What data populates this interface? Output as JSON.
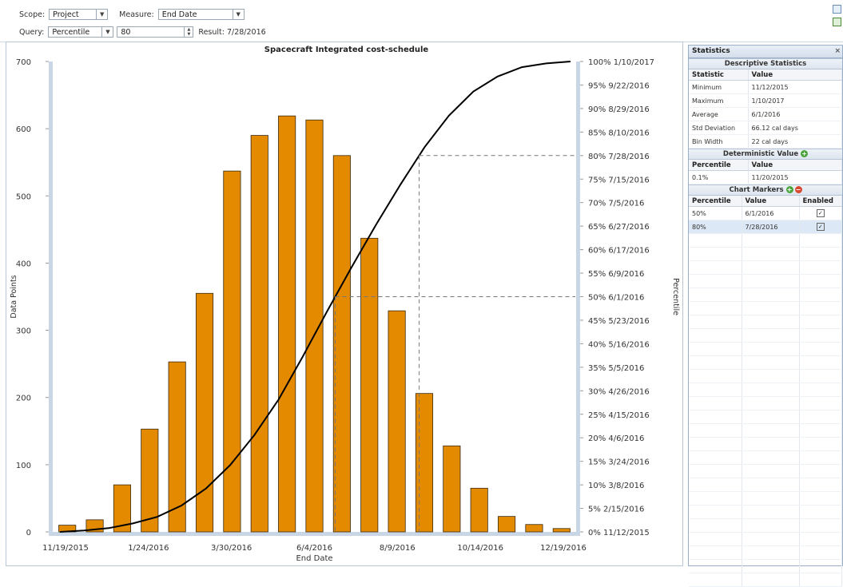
{
  "toolbar": {
    "scope_label": "Scope:",
    "scope_value": "Project",
    "measure_label": "Measure:",
    "measure_value": "End Date",
    "query_label": "Query:",
    "query_value": "Percentile",
    "query_input": "80",
    "result_text": "Result: 7/28/2016"
  },
  "chart_data": {
    "type": "bar",
    "title": "Spacecraft Integrated cost-schedule",
    "xlabel": "End Date",
    "ylabel": "Data Points",
    "y2label": "Percentile",
    "ylim": [
      0,
      700
    ],
    "yticks": [
      0,
      100,
      200,
      300,
      400,
      500,
      600,
      700
    ],
    "x_tick_labels": [
      "11/19/2015",
      "1/24/2016",
      "3/30/2016",
      "6/4/2016",
      "8/9/2016",
      "10/14/2016",
      "12/19/2016"
    ],
    "bar_color": "#e38a00",
    "values": [
      10,
      18,
      70,
      153,
      253,
      355,
      537,
      590,
      619,
      613,
      560,
      437,
      329,
      206,
      128,
      65,
      23,
      11,
      5
    ],
    "grid": false,
    "percentile_labels": [
      "0% 11/12/2015",
      "5% 2/15/2016",
      "10% 3/8/2016",
      "15% 3/24/2016",
      "20% 4/6/2016",
      "25% 4/15/2016",
      "30% 4/26/2016",
      "35% 5/5/2016",
      "40% 5/16/2016",
      "45% 5/23/2016",
      "50% 6/1/2016",
      "55% 6/9/2016",
      "60% 6/17/2016",
      "65% 6/27/2016",
      "70% 7/5/2016",
      "75% 7/15/2016",
      "80% 7/28/2016",
      "85% 8/10/2016",
      "90% 8/29/2016",
      "95% 9/22/2016",
      "100% 1/10/2017"
    ],
    "cumulative_curve": [
      0,
      0.3,
      0.8,
      1.8,
      3.2,
      5.6,
      9.2,
      14.2,
      20.6,
      28.2,
      37.4,
      47.0,
      56.3,
      65.3,
      73.8,
      81.8,
      88.5,
      93.6,
      96.8,
      98.8,
      99.6,
      100
    ],
    "markers": [
      {
        "percentile": 50
      },
      {
        "percentile": 80
      }
    ]
  },
  "stats": {
    "panel_title": "Statistics",
    "close_label": "×",
    "descriptive_title": "Descriptive Statistics",
    "desc_headers": [
      "Statistic",
      "Value"
    ],
    "descriptive": [
      {
        "stat": "Minimum",
        "value": "11/12/2015"
      },
      {
        "stat": "Maximum",
        "value": "1/10/2017"
      },
      {
        "stat": "Average",
        "value": "6/1/2016"
      },
      {
        "stat": "Std Deviation",
        "value": "66.12 cal days"
      },
      {
        "stat": "Bin Width",
        "value": "22 cal days"
      }
    ],
    "deterministic_title": "Deterministic Value",
    "det_headers": [
      "Percentile",
      "Value"
    ],
    "deterministic": [
      {
        "percentile": "0.1%",
        "value": "11/20/2015"
      }
    ],
    "markers_title": "Chart Markers",
    "marker_headers": [
      "Percentile",
      "Value",
      "Enabled"
    ],
    "markers": [
      {
        "percentile": "50%",
        "value": "6/1/2016",
        "enabled": "✓"
      },
      {
        "percentile": "80%",
        "value": "7/28/2016",
        "enabled": "✓"
      }
    ]
  }
}
